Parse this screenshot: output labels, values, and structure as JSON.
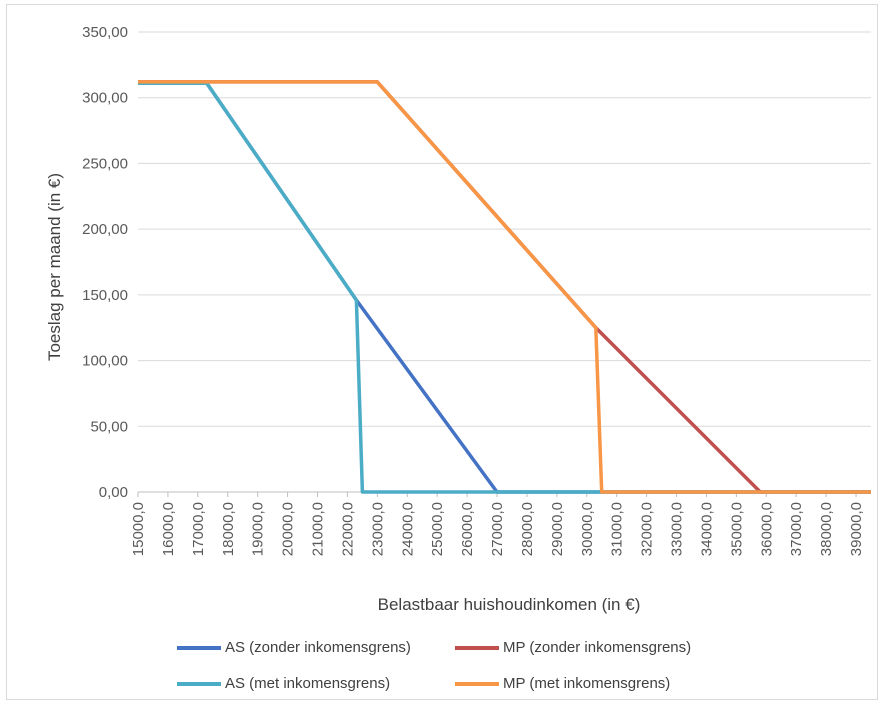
{
  "chart_data": {
    "type": "line",
    "xlabel": "Belastbaar huishoudinkomen (in €)",
    "ylabel": "Toeslag per maand (in €)",
    "ylim": [
      0,
      350
    ],
    "xlim": [
      15000,
      39500
    ],
    "y_ticks": [
      "0,00",
      "50,00",
      "100,00",
      "150,00",
      "200,00",
      "250,00",
      "300,00",
      "350,00"
    ],
    "y_tick_values": [
      0,
      50,
      100,
      150,
      200,
      250,
      300,
      350
    ],
    "x_ticks": [
      "15000,0",
      "16000,0",
      "17000,0",
      "18000,0",
      "19000,0",
      "20000,0",
      "21000,0",
      "22000,0",
      "23000,0",
      "24000,0",
      "25000,0",
      "26000,0",
      "27000,0",
      "28000,0",
      "29000,0",
      "30000,0",
      "31000,0",
      "32000,0",
      "33000,0",
      "34000,0",
      "35000,0",
      "36000,0",
      "37000,0",
      "38000,0",
      "39000,0"
    ],
    "x_tick_values": [
      15000,
      16000,
      17000,
      18000,
      19000,
      20000,
      21000,
      22000,
      23000,
      24000,
      25000,
      26000,
      27000,
      28000,
      29000,
      30000,
      31000,
      32000,
      33000,
      34000,
      35000,
      36000,
      37000,
      38000,
      39000
    ],
    "grid": "horizontal",
    "legend_position": "bottom",
    "series": [
      {
        "name": "AS (zonder inkomensgrens)",
        "color": "#4472c4",
        "x": [
          15000,
          17300,
          22300,
          27000,
          39500
        ],
        "y": [
          311,
          311,
          146,
          0,
          0
        ]
      },
      {
        "name": "MP (zonder inkomensgrens)",
        "color": "#c0504d",
        "x": [
          15000,
          23000,
          30300,
          35800,
          39500
        ],
        "y": [
          312,
          312,
          125,
          0,
          0
        ]
      },
      {
        "name": "AS (met inkomensgrens)",
        "color": "#4bacc6",
        "x": [
          15000,
          17300,
          22300,
          22500,
          39500
        ],
        "y": [
          311,
          311,
          146,
          0,
          0
        ]
      },
      {
        "name": "MP (met inkomensgrens)",
        "color": "#f79646",
        "x": [
          15000,
          23000,
          30300,
          30500,
          39500
        ],
        "y": [
          312,
          312,
          125,
          0,
          0
        ]
      }
    ]
  }
}
